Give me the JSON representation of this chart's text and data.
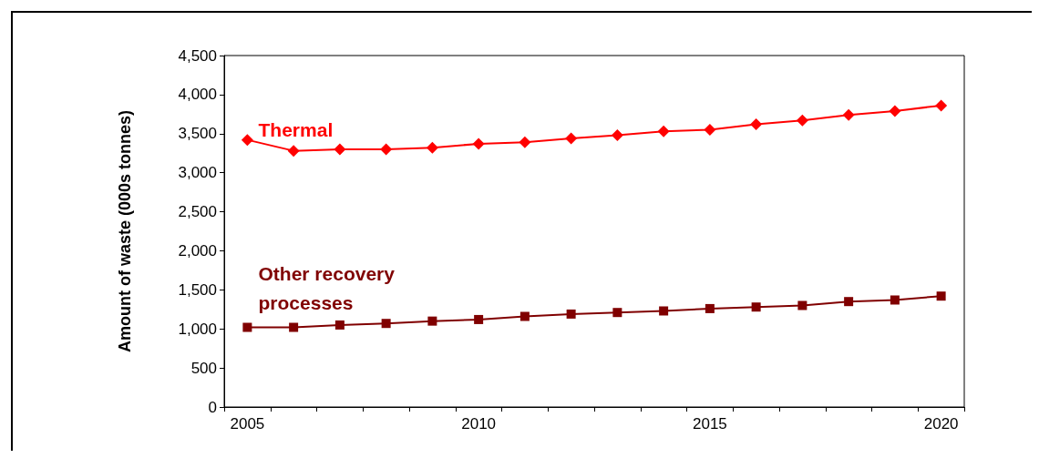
{
  "chart_data": {
    "type": "line",
    "ylabel": "Amount of waste (000s tonnes)",
    "categories": [
      "2005",
      null,
      null,
      null,
      null,
      "2010",
      null,
      null,
      null,
      null,
      "2015",
      null,
      null,
      null,
      null,
      "2020"
    ],
    "ylim": [
      0,
      4500
    ],
    "yticks": [
      {
        "value": 0,
        "label": "0"
      },
      {
        "value": 500,
        "label": "500"
      },
      {
        "value": 1000,
        "label": "1,000"
      },
      {
        "value": 1500,
        "label": "1,500"
      },
      {
        "value": 2000,
        "label": "2,000"
      },
      {
        "value": 2500,
        "label": "2,500"
      },
      {
        "value": 3000,
        "label": "3,000"
      },
      {
        "value": 3500,
        "label": "3,500"
      },
      {
        "value": 4000,
        "label": "4,000"
      },
      {
        "value": 4500,
        "label": "4,500"
      }
    ],
    "grid": false,
    "legend": false,
    "line_style": "solid",
    "series": [
      {
        "name": "Thermal",
        "color": "#ff0000",
        "marker": "diamond",
        "values": [
          3420,
          3280,
          3300,
          3300,
          3320,
          3370,
          3390,
          3440,
          3480,
          3530,
          3550,
          3620,
          3670,
          3740,
          3790,
          3860
        ]
      },
      {
        "name": "Other recovery\nprocesses",
        "color": "#800000",
        "marker": "square",
        "values": [
          1020,
          1020,
          1050,
          1070,
          1100,
          1120,
          1160,
          1190,
          1210,
          1230,
          1260,
          1280,
          1300,
          1350,
          1370,
          1420
        ]
      }
    ]
  }
}
